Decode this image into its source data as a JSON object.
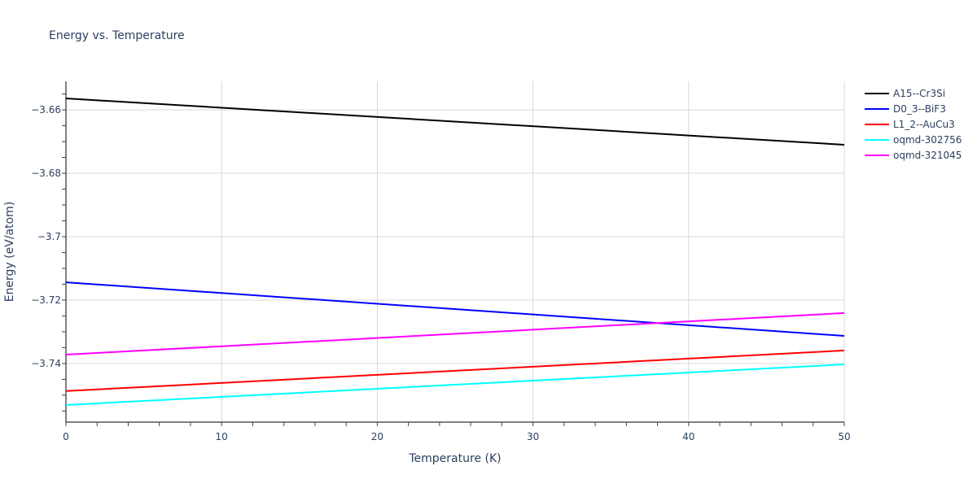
{
  "chart_data": {
    "type": "line",
    "title": "Energy vs. Temperature",
    "xlabel": "Temperature (K)",
    "ylabel": "Energy (eV/atom)",
    "xlim": [
      0,
      50
    ],
    "ylim": [
      -3.7585,
      -3.651
    ],
    "xticks": [
      0,
      10,
      20,
      30,
      40,
      50
    ],
    "xtick_labels": [
      "0",
      "10",
      "20",
      "30",
      "40",
      "50"
    ],
    "yticks": [
      -3.74,
      -3.72,
      -3.7,
      -3.68,
      -3.66
    ],
    "ytick_labels": [
      "−3.74",
      "−3.72",
      "−3.7",
      "−3.68",
      "−3.66"
    ],
    "grid": true,
    "legend_position": "top-right",
    "series": [
      {
        "name": "A15--Cr3Si",
        "color": "#000000",
        "x": [
          0,
          50
        ],
        "y": [
          -3.6564,
          -3.671
        ]
      },
      {
        "name": "D0_3--BiF3",
        "color": "#0000ff",
        "x": [
          0,
          50
        ],
        "y": [
          -3.7144,
          -3.7313
        ]
      },
      {
        "name": "L1_2--AuCu3",
        "color": "#ff0000",
        "x": [
          0,
          50
        ],
        "y": [
          -3.7487,
          -3.7359
        ]
      },
      {
        "name": "oqmd-302756",
        "color": "#00ffff",
        "x": [
          0,
          50
        ],
        "y": [
          -3.7531,
          -3.7403
        ]
      },
      {
        "name": "oqmd-321045",
        "color": "#ff00ff",
        "x": [
          0,
          50
        ],
        "y": [
          -3.7372,
          -3.7241
        ]
      }
    ]
  }
}
